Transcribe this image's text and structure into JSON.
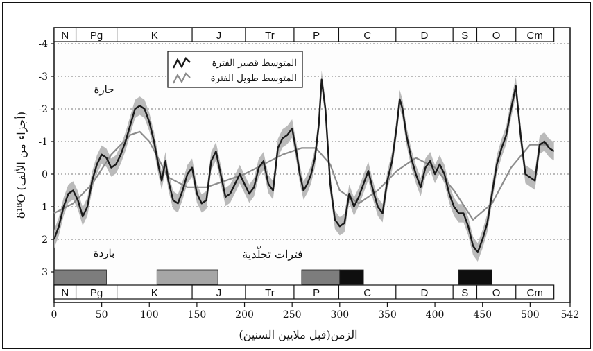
{
  "chart_data": {
    "type": "line",
    "xlabel": "الزمن(قبل ملايين السنين)",
    "ylabel": "δ¹⁸O (أجزاء من الألف)",
    "xlim": [
      0,
      542
    ],
    "ylim": [
      3,
      -4
    ],
    "y_inverted": true,
    "xticks": [
      "0",
      "50",
      "100",
      "150",
      "200",
      "250",
      "300",
      "350",
      "400",
      "450",
      "500",
      "542"
    ],
    "yticks": [
      "-4",
      "-3",
      "-2",
      "-1",
      "0",
      "1",
      "2",
      "3"
    ],
    "grid": "horizontal dotted",
    "legend_position": "top-center",
    "annotations": {
      "warm": "حارة",
      "cold": "باردة",
      "glacial": "فترات تجلّدية"
    },
    "periods": [
      {
        "name": "N",
        "start": 0,
        "end": 23
      },
      {
        "name": "Pg",
        "start": 23,
        "end": 66
      },
      {
        "name": "K",
        "start": 66,
        "end": 145
      },
      {
        "name": "J",
        "start": 145,
        "end": 201
      },
      {
        "name": "Tr",
        "start": 201,
        "end": 252
      },
      {
        "name": "P",
        "start": 252,
        "end": 299
      },
      {
        "name": "C",
        "start": 299,
        "end": 359
      },
      {
        "name": "D",
        "start": 359,
        "end": 419
      },
      {
        "name": "S",
        "start": 419,
        "end": 444
      },
      {
        "name": "O",
        "start": 444,
        "end": 485
      },
      {
        "name": "Cm",
        "start": 485,
        "end": 542
      }
    ],
    "glacial_periods": [
      {
        "start": 0,
        "end": 55,
        "shade": "medium"
      },
      {
        "start": 108,
        "end": 172,
        "shade": "light"
      },
      {
        "start": 260,
        "end": 300,
        "shade": "medium"
      },
      {
        "start": 300,
        "end": 325,
        "shade": "dark"
      },
      {
        "start": 425,
        "end": 460,
        "shade": "dark"
      }
    ],
    "series": [
      {
        "name": "المتوسط قصير الفترة",
        "color": "#1a1a1a",
        "x": [
          0,
          5,
          10,
          15,
          20,
          25,
          30,
          35,
          40,
          45,
          50,
          55,
          60,
          65,
          70,
          75,
          80,
          85,
          90,
          95,
          100,
          105,
          110,
          113,
          117,
          120,
          125,
          130,
          135,
          140,
          145,
          150,
          155,
          160,
          165,
          170,
          175,
          180,
          185,
          190,
          195,
          200,
          205,
          210,
          215,
          220,
          225,
          230,
          235,
          240,
          245,
          250,
          255,
          258,
          262,
          266,
          270,
          274,
          278,
          281,
          285,
          290,
          295,
          300,
          305,
          310,
          315,
          320,
          325,
          330,
          335,
          340,
          345,
          350,
          355,
          360,
          363,
          366,
          370,
          375,
          380,
          385,
          390,
          395,
          400,
          405,
          410,
          415,
          420,
          425,
          430,
          435,
          440,
          445,
          450,
          455,
          460,
          465,
          470,
          475,
          480,
          485,
          490,
          495,
          500,
          505,
          510,
          515,
          520,
          525
        ],
        "y": [
          2.0,
          1.6,
          1.0,
          0.6,
          0.5,
          0.8,
          1.3,
          1.0,
          0.2,
          -0.3,
          -0.6,
          -0.5,
          -0.2,
          -0.3,
          -0.6,
          -1.0,
          -1.5,
          -2.0,
          -2.1,
          -2.0,
          -1.6,
          -1.0,
          -0.2,
          0.2,
          -0.4,
          0.2,
          0.8,
          0.9,
          0.5,
          0.0,
          -0.2,
          0.6,
          0.9,
          0.8,
          -0.4,
          -0.7,
          0.0,
          0.7,
          0.6,
          0.3,
          0.0,
          0.3,
          0.6,
          0.4,
          -0.2,
          -0.4,
          0.3,
          0.5,
          -0.8,
          -1.1,
          -1.2,
          -1.4,
          -0.6,
          0.0,
          0.5,
          0.3,
          0.0,
          -0.5,
          -1.5,
          -2.9,
          -2.0,
          0.3,
          1.4,
          1.6,
          1.5,
          0.6,
          1.0,
          0.7,
          0.3,
          -0.1,
          0.5,
          1.0,
          1.2,
          0.2,
          -0.4,
          -1.5,
          -2.3,
          -2.0,
          -1.2,
          -0.5,
          0.0,
          0.4,
          -0.2,
          -0.4,
          0.0,
          -0.3,
          0.0,
          0.6,
          1.0,
          1.2,
          1.2,
          1.6,
          2.2,
          2.4,
          2.0,
          1.5,
          0.6,
          -0.3,
          -0.8,
          -1.2,
          -2.0,
          -2.7,
          -1.2,
          0.0,
          0.1,
          0.2,
          -0.9,
          -1.0,
          -0.8,
          -0.7
        ],
        "uncertainty_band": "grey"
      },
      {
        "name": "المتوسط طويل الفترة",
        "color": "#8c8c8c",
        "x": [
          0,
          20,
          40,
          60,
          80,
          90,
          100,
          120,
          140,
          160,
          180,
          200,
          220,
          240,
          260,
          275,
          290,
          300,
          320,
          340,
          360,
          380,
          400,
          420,
          440,
          460,
          480,
          500,
          520
        ],
        "y": [
          1.2,
          0.9,
          0.3,
          -0.6,
          -1.2,
          -1.3,
          -1.0,
          0.1,
          0.4,
          0.4,
          0.2,
          0.0,
          -0.3,
          -0.6,
          -0.8,
          -0.8,
          -0.3,
          0.5,
          0.9,
          0.5,
          -0.1,
          -0.5,
          -0.2,
          0.5,
          1.4,
          0.9,
          -0.2,
          -0.9,
          -0.9
        ]
      }
    ]
  }
}
